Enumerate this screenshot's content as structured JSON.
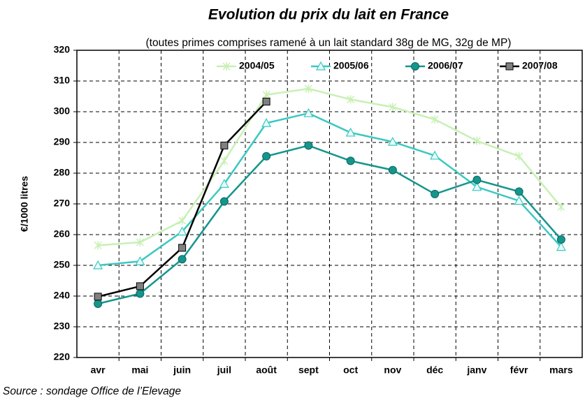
{
  "chart_data": {
    "type": "line",
    "title": "Evolution du prix du lait en France",
    "subtitle": "(toutes primes comprises ramené à un lait standard 38g de MG, 32g de MP)",
    "y_label": "€/1000 litres",
    "source": "Source : sondage Office de l’Elevage",
    "categories": [
      "avr",
      "mai",
      "juin",
      "juil",
      "août",
      "sept",
      "oct",
      "nov",
      "déc",
      "janv",
      "févr",
      "mars"
    ],
    "series": [
      {
        "name": "2004/05",
        "color": "#c8f0b4",
        "marker": "star",
        "values": [
          256.5,
          257.5,
          264.5,
          284,
          305.5,
          307.5,
          304,
          301.5,
          297.5,
          290.5,
          285.5,
          269
        ]
      },
      {
        "name": "2005/06",
        "color": "#3cc8c0",
        "marker": "triangle",
        "values": [
          250,
          251.3,
          261,
          276.5,
          296.3,
          299.5,
          293.2,
          290.2,
          285.7,
          275.5,
          271,
          256
        ]
      },
      {
        "name": "2006/07",
        "color": "#14968c",
        "marker": "circle",
        "values": [
          237.5,
          240.8,
          252,
          270.8,
          285.5,
          289,
          284,
          281,
          273.2,
          277.8,
          274,
          258.4
        ]
      },
      {
        "name": "2007/08",
        "color": "#000000",
        "marker": "square",
        "values": [
          239.8,
          243.2,
          255.7,
          289,
          303.3,
          null,
          null,
          null,
          null,
          null,
          null,
          null
        ]
      }
    ],
    "ylim": [
      220,
      320
    ],
    "yticks": [
      220,
      230,
      240,
      250,
      260,
      270,
      280,
      290,
      300,
      310,
      320
    ],
    "grid": true,
    "legend": "top"
  }
}
